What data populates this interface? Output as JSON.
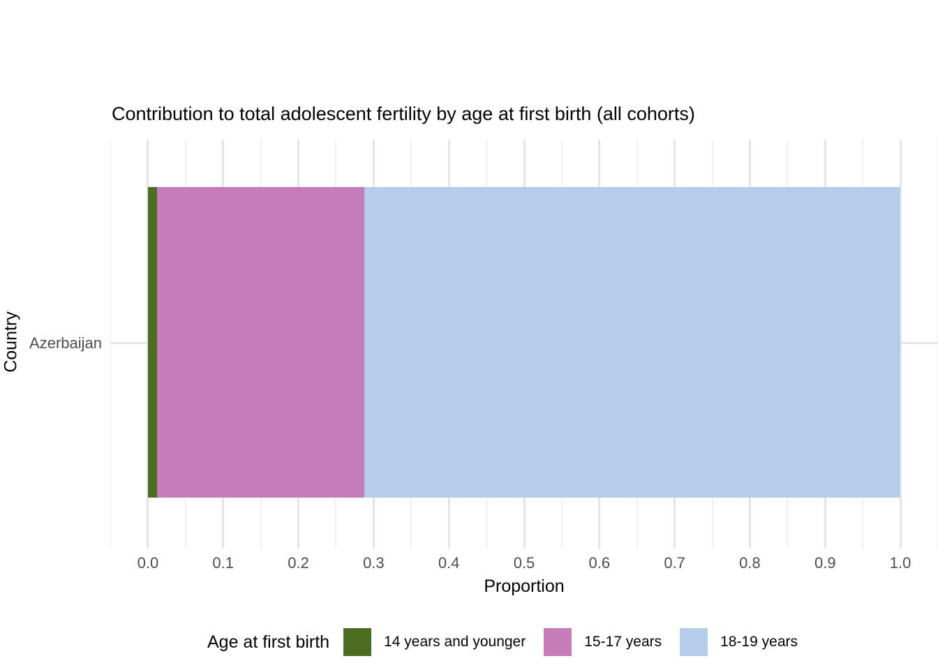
{
  "title": "Contribution to total adolescent fertility by age at first birth (all cohorts)",
  "axes": {
    "x_title": "Proportion",
    "y_title": "Country",
    "y_category_labels": [
      "Azerbaijan"
    ]
  },
  "legend": {
    "title": "Age at first birth",
    "items": [
      {
        "label": "14 years and younger",
        "color": "#4c6b23"
      },
      {
        "label": "15-17 years",
        "color": "#c77cba"
      },
      {
        "label": "18-19 years",
        "color": "#b5cdeb"
      }
    ]
  },
  "chart_data": {
    "type": "bar",
    "orientation": "horizontal",
    "stacked": true,
    "title": "Contribution to total adolescent fertility by age at first birth (all cohorts)",
    "xlabel": "Proportion",
    "ylabel": "Country",
    "categories": [
      "Azerbaijan"
    ],
    "series": [
      {
        "name": "14 years and younger",
        "color": "#4c6b23",
        "values": [
          0.012
        ]
      },
      {
        "name": "15-17 years",
        "color": "#c77cba",
        "values": [
          0.276
        ]
      },
      {
        "name": "18-19 years",
        "color": "#b5cdeb",
        "values": [
          0.712
        ]
      }
    ],
    "xlim": [
      0,
      1
    ],
    "x_ticks": [
      0,
      0.1,
      0.2,
      0.3,
      0.4,
      0.5,
      0.6,
      0.7,
      0.8,
      0.9,
      1
    ],
    "x_tick_decimals": 1,
    "grid": "major+minor",
    "legend_position": "bottom",
    "legend_title": "Age at first birth"
  },
  "style": {
    "grid_major_color": "#e5e5e5",
    "grid_minor_color": "#f0f0f0",
    "tick_label_color": "#4d4d4d",
    "text_color": "#000000",
    "background": "#ffffff"
  }
}
